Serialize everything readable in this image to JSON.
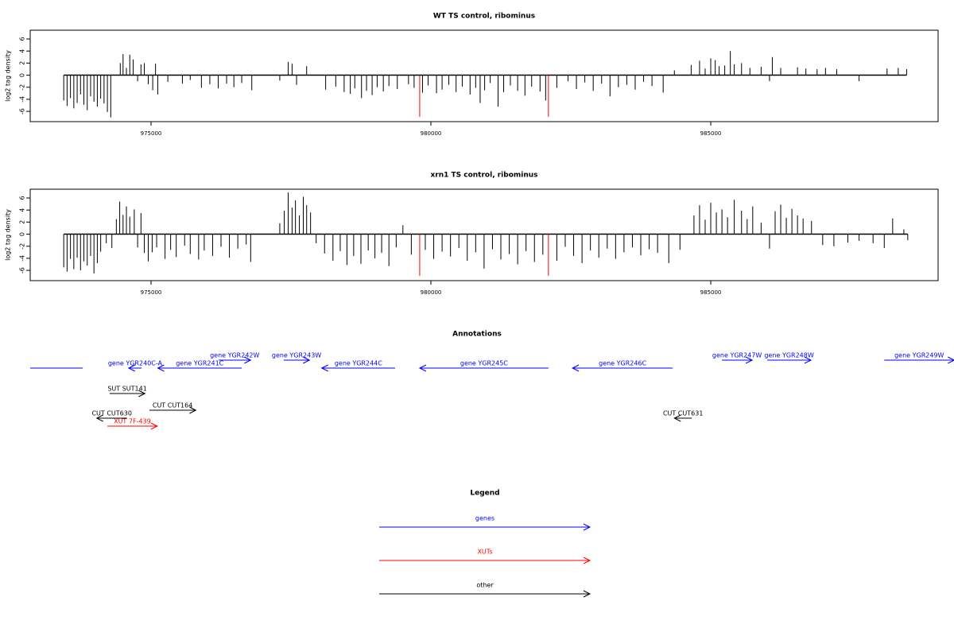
{
  "chart_data": [
    {
      "type": "spike",
      "title": "WT TS control, ribominus",
      "ylabel": "log2 tag density",
      "color": "#000000",
      "xlim": [
        972841,
        989062
      ],
      "ylim": [
        -7.7,
        7.45
      ],
      "xticks": [
        975000,
        980000,
        985000
      ],
      "yticks": [
        -6,
        -4,
        -2,
        0,
        2,
        4,
        6
      ],
      "x": [
        973440,
        973500,
        973560,
        973620,
        973680,
        973740,
        973800,
        973860,
        973920,
        973980,
        974040,
        974100,
        974160,
        974220,
        974280,
        974450,
        974500,
        974560,
        974620,
        974680,
        974760,
        974820,
        974880,
        974950,
        975030,
        975080,
        975120,
        975300,
        975560,
        975700,
        975900,
        976050,
        976200,
        976350,
        976480,
        976620,
        976800,
        977300,
        977450,
        977520,
        977600,
        977780,
        978120,
        978300,
        978450,
        978560,
        978640,
        978760,
        978850,
        978950,
        979040,
        979150,
        979250,
        979400,
        979600,
        979700,
        979850,
        979950,
        980100,
        980200,
        980320,
        980450,
        980560,
        980700,
        980800,
        980880,
        980960,
        981060,
        981200,
        981300,
        981420,
        981550,
        981680,
        981800,
        981950,
        982050,
        982250,
        982450,
        982600,
        982750,
        982900,
        983050,
        983200,
        983350,
        983500,
        983650,
        983800,
        983950,
        984150,
        984350,
        984650,
        984800,
        984900,
        985000,
        985080,
        985150,
        985250,
        985350,
        985420,
        985550,
        985700,
        985900,
        986050,
        986100,
        986250,
        986550,
        986700,
        986900,
        987050,
        987250,
        987650,
        988150,
        988350,
        988500
      ],
      "values": [
        -4.2,
        -5.1,
        -3.8,
        -5.5,
        -4.6,
        -3.2,
        -4.9,
        -5.8,
        -3.5,
        -4.4,
        -5.2,
        -3.9,
        -4.7,
        -6.1,
        -7.0,
        2.0,
        3.5,
        1.2,
        3.4,
        2.6,
        -1.0,
        1.8,
        2.0,
        -1.5,
        -2.5,
        1.9,
        -3.2,
        -1.1,
        -1.4,
        -0.8,
        -2.1,
        -1.5,
        -2.2,
        -1.4,
        -2.0,
        -1.3,
        -2.5,
        -0.9,
        2.2,
        1.9,
        -1.6,
        1.5,
        -2.4,
        -1.9,
        -2.8,
        -3.1,
        -2.2,
        -3.8,
        -2.6,
        -3.3,
        -2.0,
        -2.7,
        -1.8,
        -2.3,
        -1.5,
        -2.1,
        -2.9,
        -1.7,
        -3.0,
        -2.4,
        -1.6,
        -2.8,
        -1.9,
        -3.2,
        -2.1,
        -4.6,
        -2.5,
        -1.3,
        -5.2,
        -2.8,
        -1.7,
        -2.6,
        -3.4,
        -1.9,
        -2.7,
        -4.2,
        -2.1,
        -1.0,
        -2.3,
        -1.2,
        -2.6,
        -1.4,
        -3.5,
        -2.0,
        -1.6,
        -2.4,
        -1.1,
        -1.8,
        -2.9,
        0.8,
        1.7,
        2.4,
        1.1,
        2.8,
        2.5,
        1.5,
        1.6,
        4.0,
        1.8,
        2.0,
        1.2,
        1.4,
        -1.0,
        3.0,
        1.2,
        1.3,
        1.1,
        1.0,
        1.2,
        1.0,
        -1.0,
        1.1,
        1.2,
        1.0
      ],
      "highlight": {
        "color": "#ff0000",
        "x": [
          979800,
          982100
        ],
        "values": [
          -6.9,
          -6.9
        ]
      }
    },
    {
      "type": "spike",
      "title": "xrn1 TS control, ribominus",
      "ylabel": "log2 tag density",
      "color": "#000000",
      "xlim": [
        972841,
        989062
      ],
      "ylim": [
        -7.7,
        7.45
      ],
      "xticks": [
        975000,
        980000,
        985000
      ],
      "yticks": [
        -6,
        -4,
        -2,
        0,
        2,
        4,
        6
      ],
      "x": [
        973440,
        973500,
        973560,
        973620,
        973680,
        973740,
        973800,
        973860,
        973920,
        973980,
        974040,
        974100,
        974200,
        974300,
        974380,
        974440,
        974500,
        974560,
        974620,
        974700,
        974760,
        974820,
        974880,
        974950,
        975020,
        975100,
        975250,
        975350,
        975450,
        975600,
        975700,
        975850,
        975950,
        976100,
        976250,
        976400,
        976550,
        976700,
        976780,
        977300,
        977380,
        977450,
        977520,
        977580,
        977650,
        977720,
        977780,
        977850,
        977950,
        978100,
        978250,
        978380,
        978500,
        978620,
        978750,
        978880,
        979000,
        979120,
        979250,
        979380,
        979500,
        979650,
        979900,
        980050,
        980200,
        980350,
        980500,
        980650,
        980800,
        980950,
        981100,
        981250,
        981400,
        981550,
        981700,
        981850,
        982000,
        982250,
        982400,
        982550,
        982700,
        982850,
        983000,
        983150,
        983300,
        983450,
        983600,
        983750,
        983900,
        984050,
        984250,
        984450,
        984700,
        984800,
        984900,
        985000,
        985100,
        985200,
        985300,
        985420,
        985550,
        985650,
        985750,
        985900,
        986050,
        986150,
        986250,
        986350,
        986450,
        986550,
        986650,
        986800,
        987000,
        987200,
        987450,
        987650,
        987900,
        988100,
        988250,
        988450,
        988520
      ],
      "values": [
        -5.5,
        -6.2,
        -4.1,
        -5.8,
        -3.9,
        -6.0,
        -4.5,
        -5.2,
        -3.6,
        -6.5,
        -4.8,
        -2.9,
        -1.5,
        -2.3,
        2.5,
        5.4,
        3.2,
        4.6,
        2.9,
        4.1,
        -2.2,
        3.5,
        -3.1,
        -4.5,
        -3.0,
        -2.2,
        -4.1,
        -2.6,
        -3.8,
        -1.9,
        -3.3,
        -4.2,
        -2.7,
        -3.6,
        -2.1,
        -3.9,
        -2.4,
        -1.7,
        -4.6,
        1.8,
        3.9,
        6.9,
        4.4,
        5.6,
        3.1,
        6.2,
        4.8,
        3.6,
        -1.5,
        -3.2,
        -4.4,
        -2.8,
        -5.1,
        -3.6,
        -4.9,
        -2.7,
        -4.0,
        -3.1,
        -5.3,
        -2.2,
        1.5,
        -3.4,
        -2.6,
        -4.1,
        -2.9,
        -3.7,
        -2.3,
        -4.4,
        -3.0,
        -5.7,
        -2.5,
        -4.2,
        -3.3,
        -5.0,
        -2.8,
        -4.6,
        -3.4,
        -4.4,
        -2.1,
        -3.6,
        -4.8,
        -2.7,
        -3.9,
        -2.4,
        -4.1,
        -3.0,
        -2.2,
        -3.5,
        -2.5,
        -3.1,
        -4.8,
        -2.6,
        3.1,
        4.8,
        2.4,
        5.2,
        3.6,
        4.1,
        2.8,
        5.7,
        3.9,
        2.5,
        4.6,
        1.9,
        -2.4,
        3.8,
        4.9,
        2.7,
        4.2,
        3.1,
        2.6,
        2.2,
        -1.8,
        -2.0,
        -1.4,
        -1.1,
        -1.5,
        -2.3,
        2.6,
        0.8,
        -1.0
      ],
      "highlight": {
        "color": "#ff0000",
        "x": [
          979800,
          982100
        ],
        "values": [
          -6.9,
          -6.9
        ]
      }
    }
  ],
  "annotations": {
    "title": "Annotations",
    "features": [
      {
        "label": null,
        "color": "#0000ff",
        "strand": null,
        "start": 972840,
        "end": 973780
      },
      {
        "label": "gene YGR240C-A",
        "color": "#0000ff",
        "strand": "-",
        "start": 974600,
        "end": 974830
      },
      {
        "label": "gene YGR241C",
        "color": "#0000ff",
        "strand": "-",
        "start": 975120,
        "end": 976620
      },
      {
        "label": "gene YGR242W",
        "color": "#0000ff",
        "strand": "+",
        "start": 976210,
        "end": 976780
      },
      {
        "label": "gene YGR243W",
        "color": "#0000ff",
        "strand": "+",
        "start": 977370,
        "end": 977830
      },
      {
        "label": "gene YGR244C",
        "color": "#0000ff",
        "strand": "-",
        "start": 978050,
        "end": 979360
      },
      {
        "label": "gene YGR245C",
        "color": "#0000ff",
        "strand": "-",
        "start": 979800,
        "end": 982100
      },
      {
        "label": "gene YGR246C",
        "color": "#0000ff",
        "strand": "-",
        "start": 982530,
        "end": 984320
      },
      {
        "label": "gene YGR247W",
        "color": "#0000ff",
        "strand": "+",
        "start": 985200,
        "end": 985740
      },
      {
        "label": "gene YGR248W",
        "color": "#0000ff",
        "strand": "+",
        "start": 986010,
        "end": 986790
      },
      {
        "label": "gene YGR249W",
        "color": "#0000ff",
        "strand": "+",
        "start": 988100,
        "end": 989350
      },
      {
        "label": "SUT SUT141",
        "color": "#000000",
        "strand": "+",
        "start": 974260,
        "end": 974890
      },
      {
        "label": "CUT CUT164",
        "color": "#000000",
        "strand": "+",
        "start": 974970,
        "end": 975800
      },
      {
        "label": "CUT CUT630",
        "color": "#000000",
        "strand": "-",
        "start": 974030,
        "end": 974570
      },
      {
        "label": "XUT 7F-439",
        "color": "#ff0000",
        "strand": "+",
        "start": 974220,
        "end": 975110
      },
      {
        "label": "CUT CUT631",
        "color": "#000000",
        "strand": "-",
        "start": 984350,
        "end": 984660
      }
    ]
  },
  "legend": {
    "title": "Legend",
    "items": [
      {
        "label": "genes",
        "color": "#0000ff"
      },
      {
        "label": "XUTs",
        "color": "#ff0000"
      },
      {
        "label": "other",
        "color": "#000000"
      }
    ]
  }
}
